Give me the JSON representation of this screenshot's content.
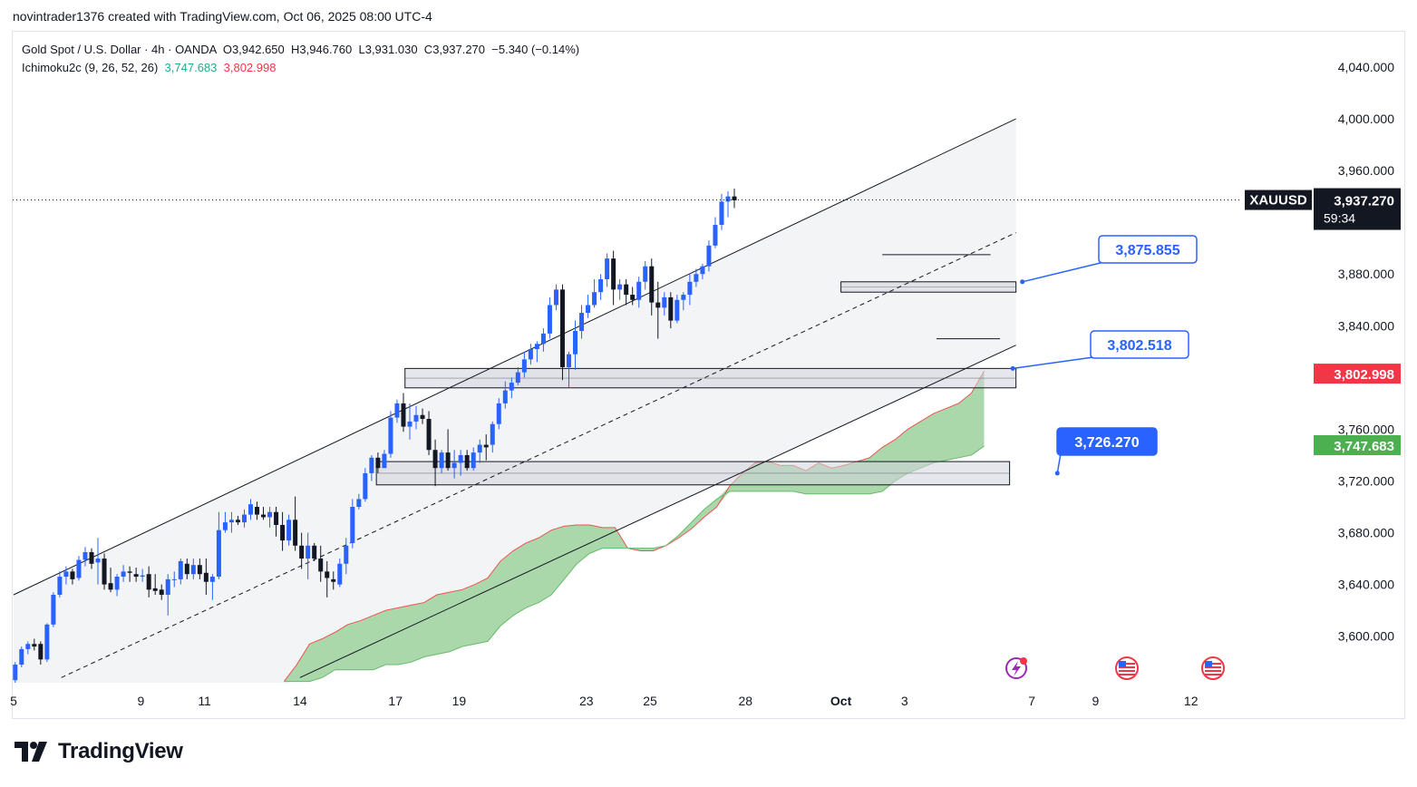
{
  "attribution": "novintrader1376 created with TradingView.com, Oct 06, 2025 08:00 UTC-4",
  "legend": {
    "symbol_line": "Gold Spot / U.S. Dollar · 4h · OANDA",
    "open_label": "O",
    "open": "3,942.650",
    "high_label": "H",
    "high": "3,946.760",
    "low_label": "L",
    "low": "3,931.030",
    "close_label": "C",
    "close": "3,937.270",
    "change": "−5.340 (−0.14%)",
    "indicator_name": "Ichimoku2c (9, 26, 52, 26)",
    "indicator_value_1": "3,747.683",
    "indicator_value_2": "3,802.998"
  },
  "footer": {
    "brand": "TradingView"
  },
  "colors": {
    "bull": "#2962ff",
    "bear": "#131722",
    "cloud": "#a5d6a7",
    "cloud_edge_red": "#ef5350",
    "callout_blue": "#2962ff",
    "tag_red": "#f23645",
    "tag_green": "#4caf50",
    "zone": "#d1d4dc"
  },
  "chart_data": {
    "type": "candlestick",
    "symbol": "XAUUSD",
    "timeframe": "4h",
    "y_ticks": [
      "4,040.000",
      "4,000.000",
      "3,960.000",
      "3,880.000",
      "3,840.000",
      "3,760.000",
      "3,720.000",
      "3,680.000",
      "3,640.000",
      "3,600.000"
    ],
    "y_tick_values": [
      4040,
      4000,
      3960,
      3880,
      3840,
      3760,
      3720,
      3680,
      3640,
      3600
    ],
    "x_ticks": [
      {
        "label": "5",
        "day": 0
      },
      {
        "label": "9",
        "day": 4
      },
      {
        "label": "11",
        "day": 6
      },
      {
        "label": "14",
        "day": 9
      },
      {
        "label": "17",
        "day": 12
      },
      {
        "label": "19",
        "day": 14
      },
      {
        "label": "23",
        "day": 18
      },
      {
        "label": "25",
        "day": 20
      },
      {
        "label": "28",
        "day": 23
      },
      {
        "label": "Oct",
        "day": 26,
        "bold": true
      },
      {
        "label": "3",
        "day": 28
      },
      {
        "label": "7",
        "day": 32
      },
      {
        "label": "9",
        "day": 34
      },
      {
        "label": "12",
        "day": 37
      }
    ],
    "y_range": [
      3565,
      4085
    ],
    "last_price": {
      "label": "XAUUSD",
      "value": 3937.27,
      "text": "3,937.270",
      "countdown": "59:34"
    },
    "tags": [
      {
        "text": "3,802.998",
        "value": 3802.998,
        "color": "red"
      },
      {
        "text": "3,747.683",
        "value": 3747.683,
        "color": "green"
      }
    ],
    "callouts": [
      {
        "text": "3,875.855",
        "value": 3875.855,
        "style": "outline"
      },
      {
        "text": "3,802.518",
        "value": 3802.518,
        "style": "outline"
      },
      {
        "text": "3,726.270",
        "value": 3726.27,
        "style": "filled"
      }
    ],
    "zones": [
      {
        "top": 3874,
        "bottom": 3866,
        "from_day": 26,
        "to_day": 31.5
      },
      {
        "top": 3807,
        "bottom": 3792,
        "from_day": 12.3,
        "to_day": 31.5
      },
      {
        "top": 3735,
        "bottom": 3717,
        "from_day": 11.4,
        "to_day": 31.3
      }
    ],
    "channel": {
      "upper": [
        {
          "day": 0,
          "value": 3632
        },
        {
          "day": 31.5,
          "value": 4000
        }
      ],
      "lower": [
        {
          "day": 9,
          "value": 3568
        },
        {
          "day": 31.5,
          "value": 3825
        }
      ],
      "mid": [
        {
          "day": 1.5,
          "value": 3568
        },
        {
          "day": 31.5,
          "value": 3912
        }
      ]
    },
    "range_lines": [
      {
        "day_from": 27.3,
        "day_to": 30.7,
        "value": 3895
      },
      {
        "day_from": 29.0,
        "day_to": 31.0,
        "value": 3830
      }
    ],
    "cloud": {
      "days": [
        8.5,
        8.9,
        9.3,
        9.7,
        10.1,
        10.5,
        10.9,
        11.3,
        11.7,
        12.1,
        12.5,
        12.9,
        13.3,
        13.7,
        14.1,
        14.5,
        14.9,
        15.3,
        15.7,
        16.1,
        16.5,
        16.9,
        17.3,
        17.7,
        18.1,
        18.5,
        18.9,
        19.3,
        19.7,
        20.1,
        20.5,
        20.9,
        21.3,
        21.7,
        22.1,
        22.5,
        22.9,
        23.3,
        23.7,
        24.1,
        24.5,
        24.9,
        25.3,
        25.7,
        26.1,
        26.5,
        26.9,
        27.3,
        27.7,
        28.1,
        28.5,
        28.9,
        29.3,
        29.7,
        30.1,
        30.5
      ],
      "span_a": [
        3565,
        3578,
        3594,
        3598,
        3603,
        3609,
        3612,
        3616,
        3620,
        3622,
        3624,
        3626,
        3632,
        3634,
        3636,
        3640,
        3645,
        3658,
        3666,
        3672,
        3676,
        3682,
        3685,
        3686,
        3686,
        3684,
        3684,
        3668,
        3666,
        3666,
        3670,
        3676,
        3683,
        3692,
        3700,
        3716,
        3726,
        3734,
        3735,
        3732,
        3732,
        3728,
        3734,
        3730,
        3732,
        3735,
        3738,
        3746,
        3752,
        3760,
        3766,
        3772,
        3776,
        3780,
        3788,
        3805
      ],
      "span_b": [
        3565,
        3565,
        3565,
        3568,
        3574,
        3574,
        3574,
        3574,
        3578,
        3578,
        3580,
        3584,
        3586,
        3588,
        3592,
        3594,
        3596,
        3608,
        3616,
        3622,
        3626,
        3632,
        3644,
        3656,
        3664,
        3668,
        3668,
        3668,
        3668,
        3668,
        3670,
        3678,
        3688,
        3698,
        3706,
        3712,
        3712,
        3712,
        3712,
        3712,
        3712,
        3710,
        3710,
        3710,
        3710,
        3710,
        3710,
        3712,
        3720,
        3726,
        3730,
        3734,
        3736,
        3738,
        3740,
        3747
      ]
    },
    "candles": [
      [
        0.05,
        3566,
        3580,
        3564,
        3578
      ],
      [
        0.25,
        3578,
        3592,
        3576,
        3590
      ],
      [
        0.45,
        3590,
        3596,
        3586,
        3594
      ],
      [
        0.65,
        3594,
        3598,
        3589,
        3592
      ],
      [
        0.85,
        3594,
        3596,
        3578,
        3582
      ],
      [
        1.05,
        3582,
        3610,
        3580,
        3609
      ],
      [
        1.25,
        3609,
        3634,
        3607,
        3632
      ],
      [
        1.45,
        3632,
        3650,
        3630,
        3646
      ],
      [
        1.65,
        3646,
        3654,
        3640,
        3650
      ],
      [
        1.85,
        3650,
        3652,
        3640,
        3644
      ],
      [
        2.05,
        3645,
        3662,
        3643,
        3659
      ],
      [
        2.25,
        3659,
        3669,
        3654,
        3665
      ],
      [
        2.45,
        3665,
        3668,
        3652,
        3656
      ],
      [
        2.65,
        3657,
        3676,
        3640,
        3660
      ],
      [
        2.85,
        3660,
        3664,
        3636,
        3640
      ],
      [
        3.05,
        3641,
        3653,
        3634,
        3636
      ],
      [
        3.25,
        3636,
        3648,
        3631,
        3646
      ],
      [
        3.45,
        3646,
        3655,
        3642,
        3650
      ],
      [
        3.65,
        3650,
        3654,
        3642,
        3649
      ],
      [
        3.85,
        3648,
        3653,
        3642,
        3646
      ],
      [
        4.05,
        3646,
        3652,
        3642,
        3647
      ],
      [
        4.25,
        3648,
        3654,
        3630,
        3636
      ],
      [
        4.45,
        3637,
        3648,
        3632,
        3635
      ],
      [
        4.65,
        3636,
        3640,
        3628,
        3632
      ],
      [
        4.85,
        3632,
        3648,
        3616,
        3644
      ],
      [
        5.05,
        3644,
        3650,
        3638,
        3644
      ],
      [
        5.25,
        3644,
        3660,
        3640,
        3658
      ],
      [
        5.45,
        3656,
        3660,
        3644,
        3648
      ],
      [
        5.65,
        3648,
        3660,
        3644,
        3655
      ],
      [
        5.85,
        3655,
        3660,
        3644,
        3648
      ],
      [
        6.05,
        3649,
        3660,
        3632,
        3642
      ],
      [
        6.25,
        3642,
        3648,
        3628,
        3646
      ],
      [
        6.45,
        3646,
        3696,
        3644,
        3682
      ],
      [
        6.65,
        3682,
        3696,
        3680,
        3688
      ],
      [
        6.85,
        3688,
        3696,
        3680,
        3690
      ],
      [
        7.05,
        3690,
        3693,
        3686,
        3688
      ],
      [
        7.25,
        3688,
        3698,
        3684,
        3694
      ],
      [
        7.45,
        3694,
        3706,
        3690,
        3702
      ],
      [
        7.65,
        3700,
        3704,
        3690,
        3694
      ],
      [
        7.85,
        3694,
        3700,
        3690,
        3692
      ],
      [
        8.05,
        3692,
        3700,
        3684,
        3696
      ],
      [
        8.25,
        3696,
        3700,
        3677,
        3686
      ],
      [
        8.45,
        3686,
        3696,
        3666,
        3674
      ],
      [
        8.65,
        3674,
        3694,
        3670,
        3690
      ],
      [
        8.85,
        3690,
        3708,
        3666,
        3670
      ],
      [
        9.05,
        3670,
        3680,
        3652,
        3660
      ],
      [
        9.25,
        3660,
        3680,
        3644,
        3670
      ],
      [
        9.45,
        3670,
        3672,
        3658,
        3660
      ],
      [
        9.65,
        3660,
        3670,
        3642,
        3650
      ],
      [
        9.85,
        3650,
        3658,
        3630,
        3645
      ],
      [
        10.05,
        3644,
        3650,
        3636,
        3642
      ],
      [
        10.25,
        3640,
        3660,
        3638,
        3656
      ],
      [
        10.45,
        3656,
        3676,
        3648,
        3670
      ],
      [
        10.65,
        3672,
        3706,
        3668,
        3700
      ],
      [
        10.85,
        3700,
        3710,
        3698,
        3706
      ],
      [
        11.05,
        3706,
        3730,
        3704,
        3726
      ],
      [
        11.25,
        3726,
        3740,
        3720,
        3738
      ],
      [
        11.45,
        3738,
        3742,
        3726,
        3730
      ],
      [
        11.65,
        3730,
        3744,
        3730,
        3741
      ],
      [
        11.85,
        3741,
        3774,
        3738,
        3769
      ],
      [
        12.05,
        3769,
        3783,
        3765,
        3780
      ],
      [
        12.25,
        3780,
        3788,
        3758,
        3762
      ],
      [
        12.45,
        3762,
        3780,
        3752,
        3766
      ],
      [
        12.65,
        3766,
        3778,
        3760,
        3771
      ],
      [
        12.85,
        3771,
        3776,
        3764,
        3768
      ],
      [
        13.05,
        3768,
        3774,
        3740,
        3744
      ],
      [
        13.25,
        3744,
        3752,
        3716,
        3730
      ],
      [
        13.45,
        3730,
        3744,
        3726,
        3742
      ],
      [
        13.65,
        3742,
        3760,
        3728,
        3730
      ],
      [
        13.85,
        3730,
        3744,
        3722,
        3734
      ],
      [
        14.05,
        3734,
        3744,
        3724,
        3740
      ],
      [
        14.25,
        3740,
        3744,
        3728,
        3730
      ],
      [
        14.45,
        3730,
        3746,
        3728,
        3742
      ],
      [
        14.65,
        3742,
        3752,
        3734,
        3748
      ],
      [
        14.85,
        3748,
        3756,
        3736,
        3746
      ],
      [
        15.05,
        3748,
        3766,
        3742,
        3764
      ],
      [
        15.25,
        3764,
        3784,
        3760,
        3780
      ],
      [
        15.45,
        3780,
        3797,
        3776,
        3790
      ],
      [
        15.65,
        3790,
        3800,
        3784,
        3796
      ],
      [
        15.85,
        3796,
        3808,
        3794,
        3804
      ],
      [
        16.05,
        3804,
        3820,
        3800,
        3814
      ],
      [
        16.25,
        3814,
        3826,
        3810,
        3822
      ],
      [
        16.45,
        3822,
        3828,
        3812,
        3826
      ],
      [
        16.65,
        3826,
        3838,
        3820,
        3834
      ],
      [
        16.85,
        3834,
        3862,
        3830,
        3856
      ],
      [
        17.05,
        3856,
        3872,
        3852,
        3868
      ],
      [
        17.25,
        3868,
        3872,
        3798,
        3808
      ],
      [
        17.45,
        3808,
        3820,
        3792,
        3818
      ],
      [
        17.65,
        3818,
        3844,
        3806,
        3836
      ],
      [
        17.85,
        3836,
        3856,
        3830,
        3850
      ],
      [
        18.05,
        3850,
        3864,
        3846,
        3856
      ],
      [
        18.25,
        3856,
        3876,
        3854,
        3866
      ],
      [
        18.45,
        3866,
        3880,
        3860,
        3876
      ],
      [
        18.65,
        3876,
        3896,
        3870,
        3892
      ],
      [
        18.85,
        3892,
        3898,
        3856,
        3868
      ],
      [
        19.05,
        3868,
        3876,
        3860,
        3872
      ],
      [
        19.25,
        3872,
        3876,
        3856,
        3864
      ],
      [
        19.45,
        3864,
        3870,
        3856,
        3860
      ],
      [
        19.65,
        3860,
        3878,
        3854,
        3874
      ],
      [
        19.85,
        3874,
        3890,
        3868,
        3886
      ],
      [
        20.05,
        3886,
        3892,
        3848,
        3858
      ],
      [
        20.25,
        3858,
        3874,
        3830,
        3854
      ],
      [
        20.45,
        3854,
        3866,
        3848,
        3862
      ],
      [
        20.65,
        3862,
        3866,
        3838,
        3844
      ],
      [
        20.85,
        3844,
        3864,
        3842,
        3860
      ],
      [
        21.05,
        3860,
        3866,
        3852,
        3864
      ],
      [
        21.25,
        3864,
        3880,
        3856,
        3874
      ],
      [
        21.45,
        3874,
        3884,
        3870,
        3880
      ],
      [
        21.65,
        3880,
        3888,
        3876,
        3886
      ],
      [
        21.85,
        3886,
        3906,
        3882,
        3902
      ],
      [
        22.05,
        3902,
        3924,
        3900,
        3918
      ],
      [
        22.25,
        3918,
        3942,
        3914,
        3936
      ],
      [
        22.45,
        3936,
        3944,
        3924,
        3940
      ],
      [
        22.65,
        3940,
        3946,
        3931,
        3937
      ]
    ]
  }
}
